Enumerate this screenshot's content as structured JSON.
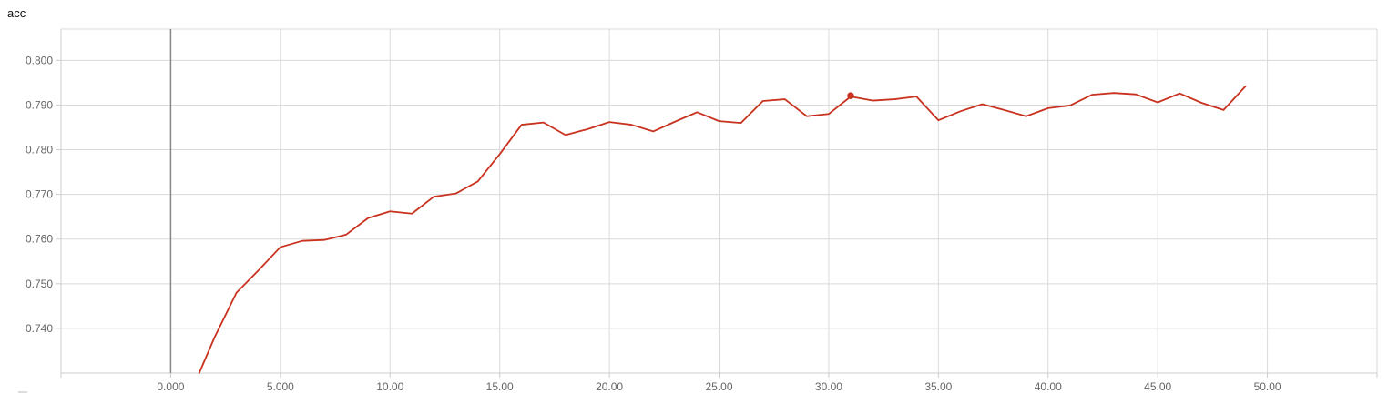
{
  "chart_data": {
    "type": "line",
    "title": "acc",
    "xlabel": "",
    "ylabel": "",
    "xlim": [
      -5,
      55
    ],
    "ylim": [
      0.73,
      0.807
    ],
    "grid": true,
    "x_ticks": [
      0,
      5,
      10,
      15,
      20,
      25,
      30,
      35,
      40,
      45,
      50
    ],
    "x_tick_labels": [
      "0.000",
      "5.000",
      "10.00",
      "15.00",
      "20.00",
      "25.00",
      "30.00",
      "35.00",
      "40.00",
      "45.00",
      "50.00"
    ],
    "y_ticks": [
      0.74,
      0.75,
      0.76,
      0.77,
      0.78,
      0.79,
      0.8
    ],
    "y_tick_labels": [
      "0.740",
      "0.750",
      "0.760",
      "0.770",
      "0.780",
      "0.790",
      "0.800"
    ],
    "vertical_marker_x": 0,
    "highlight_point": {
      "x": 31,
      "y": 0.7921
    },
    "series": [
      {
        "color": "#c8321e",
        "x": [
          1.3,
          2,
          3,
          4,
          5,
          6,
          7,
          8,
          9,
          10,
          11,
          12,
          13,
          14,
          15,
          16,
          17,
          18,
          19,
          20,
          21,
          22,
          23,
          24,
          25,
          26,
          27,
          28,
          29,
          30,
          31,
          32,
          33,
          34,
          35,
          36,
          37,
          38,
          39,
          40,
          41,
          42,
          43,
          44,
          45,
          46,
          47,
          48,
          49
        ],
        "values": [
          0.73,
          0.738,
          0.748,
          0.753,
          0.7582,
          0.7596,
          0.7598,
          0.761,
          0.7647,
          0.7662,
          0.7657,
          0.7695,
          0.7702,
          0.7729,
          0.779,
          0.7856,
          0.7861,
          0.7833,
          0.7846,
          0.7862,
          0.7856,
          0.7841,
          0.7863,
          0.7884,
          0.7864,
          0.786,
          0.7909,
          0.7913,
          0.7875,
          0.788,
          0.7919,
          0.791,
          0.7913,
          0.7919,
          0.7866,
          0.7886,
          0.7902,
          0.7889,
          0.7875,
          0.7893,
          0.7899,
          0.7923,
          0.7927,
          0.7924,
          0.7906,
          0.7926,
          0.7905,
          0.7889,
          0.7942
        ]
      }
    ]
  }
}
